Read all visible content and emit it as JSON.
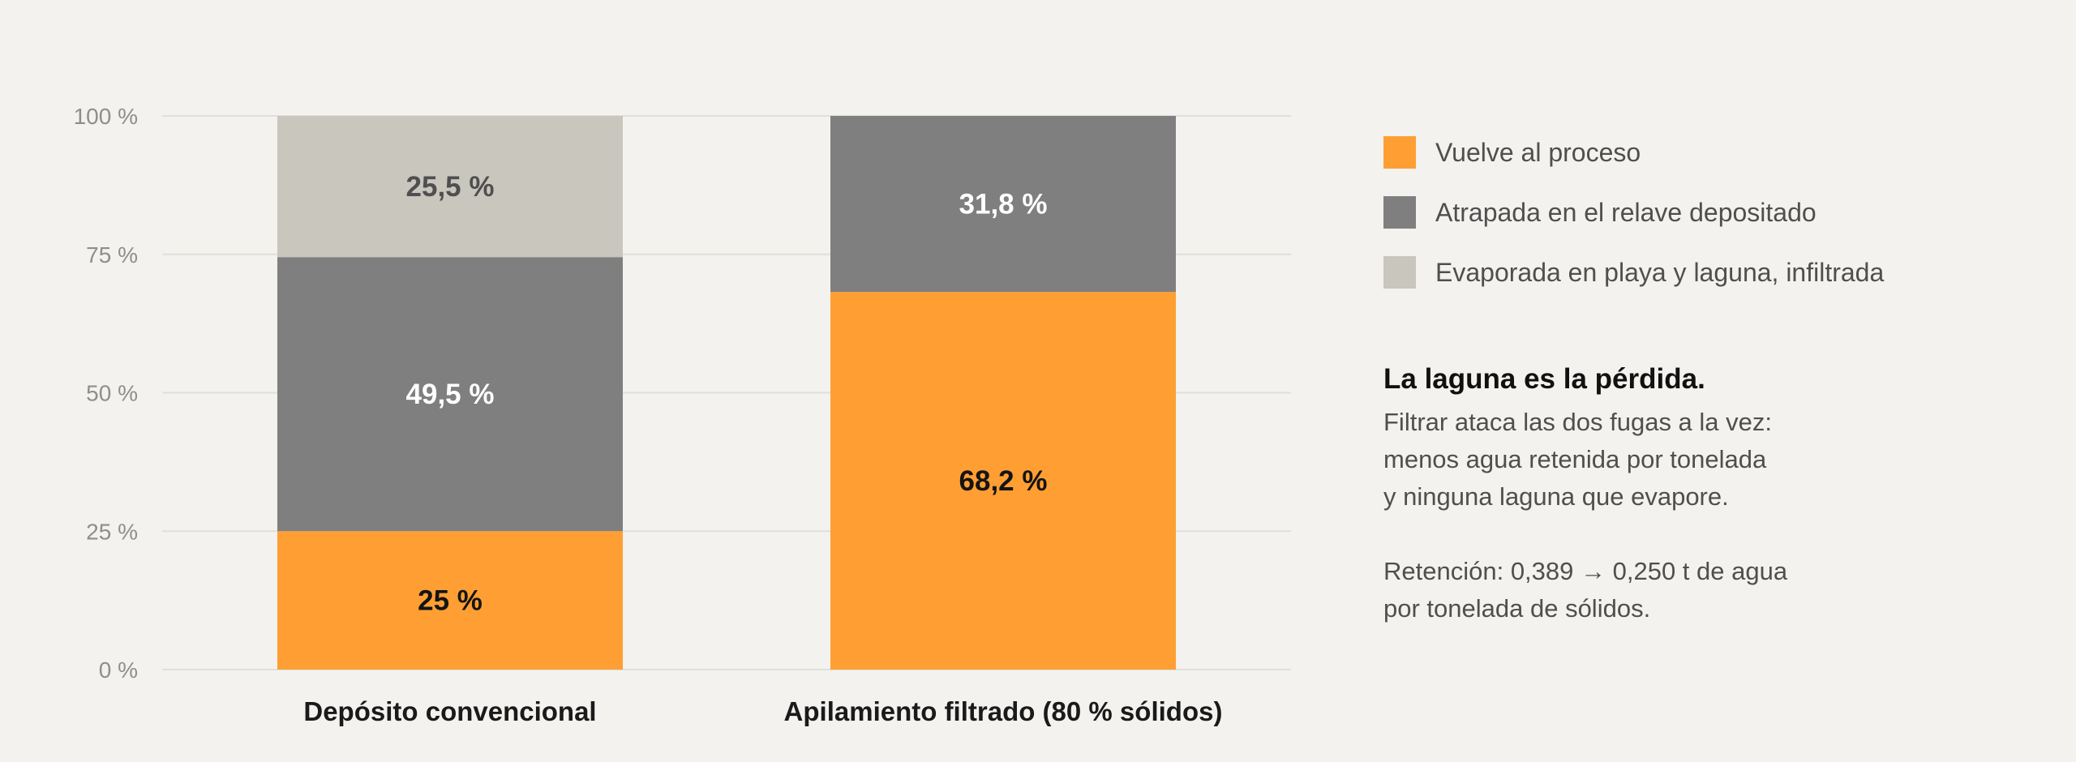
{
  "chart_data": {
    "type": "bar",
    "stacked": true,
    "categories": [
      "Depósito convencional",
      "Apilamiento filtrado (80 % sólidos)"
    ],
    "series": [
      {
        "name": "Vuelve al proceso",
        "color": "#ff9f33",
        "label_color": "#141414",
        "values": [
          25,
          68.2
        ],
        "labels": [
          "25 %",
          "68,2 %"
        ]
      },
      {
        "name": "Atrapada en el relave depositado",
        "color": "#807f7f",
        "label_color": "#ffffff",
        "values": [
          49.5,
          31.8
        ],
        "labels": [
          "49,5 %",
          "31,8 %"
        ]
      },
      {
        "name": "Evaporada en playa y laguna, infiltrada",
        "color": "#c8c6bd",
        "label_color": "#4f4f4f",
        "values": [
          25.5,
          0
        ],
        "labels": [
          "25,5 %",
          ""
        ]
      }
    ],
    "ylim": [
      0,
      100
    ],
    "yticks": [
      0,
      25,
      50,
      75,
      100
    ],
    "ytick_labels": [
      "0 %",
      "25 %",
      "50 %",
      "75 %",
      "100 %"
    ],
    "grid": true,
    "legend_position": "right",
    "gridline_color": "#e0dfda"
  },
  "note": {
    "title": "La laguna es la pérdida.",
    "paragraph1": [
      "Filtrar ataca las dos fugas a la vez:",
      "menos agua retenida por tonelada",
      "y ninguna laguna que evapore."
    ],
    "paragraph2": [
      "Retención: 0,389 → 0,250 t de agua",
      "por tonelada de sólidos."
    ]
  }
}
